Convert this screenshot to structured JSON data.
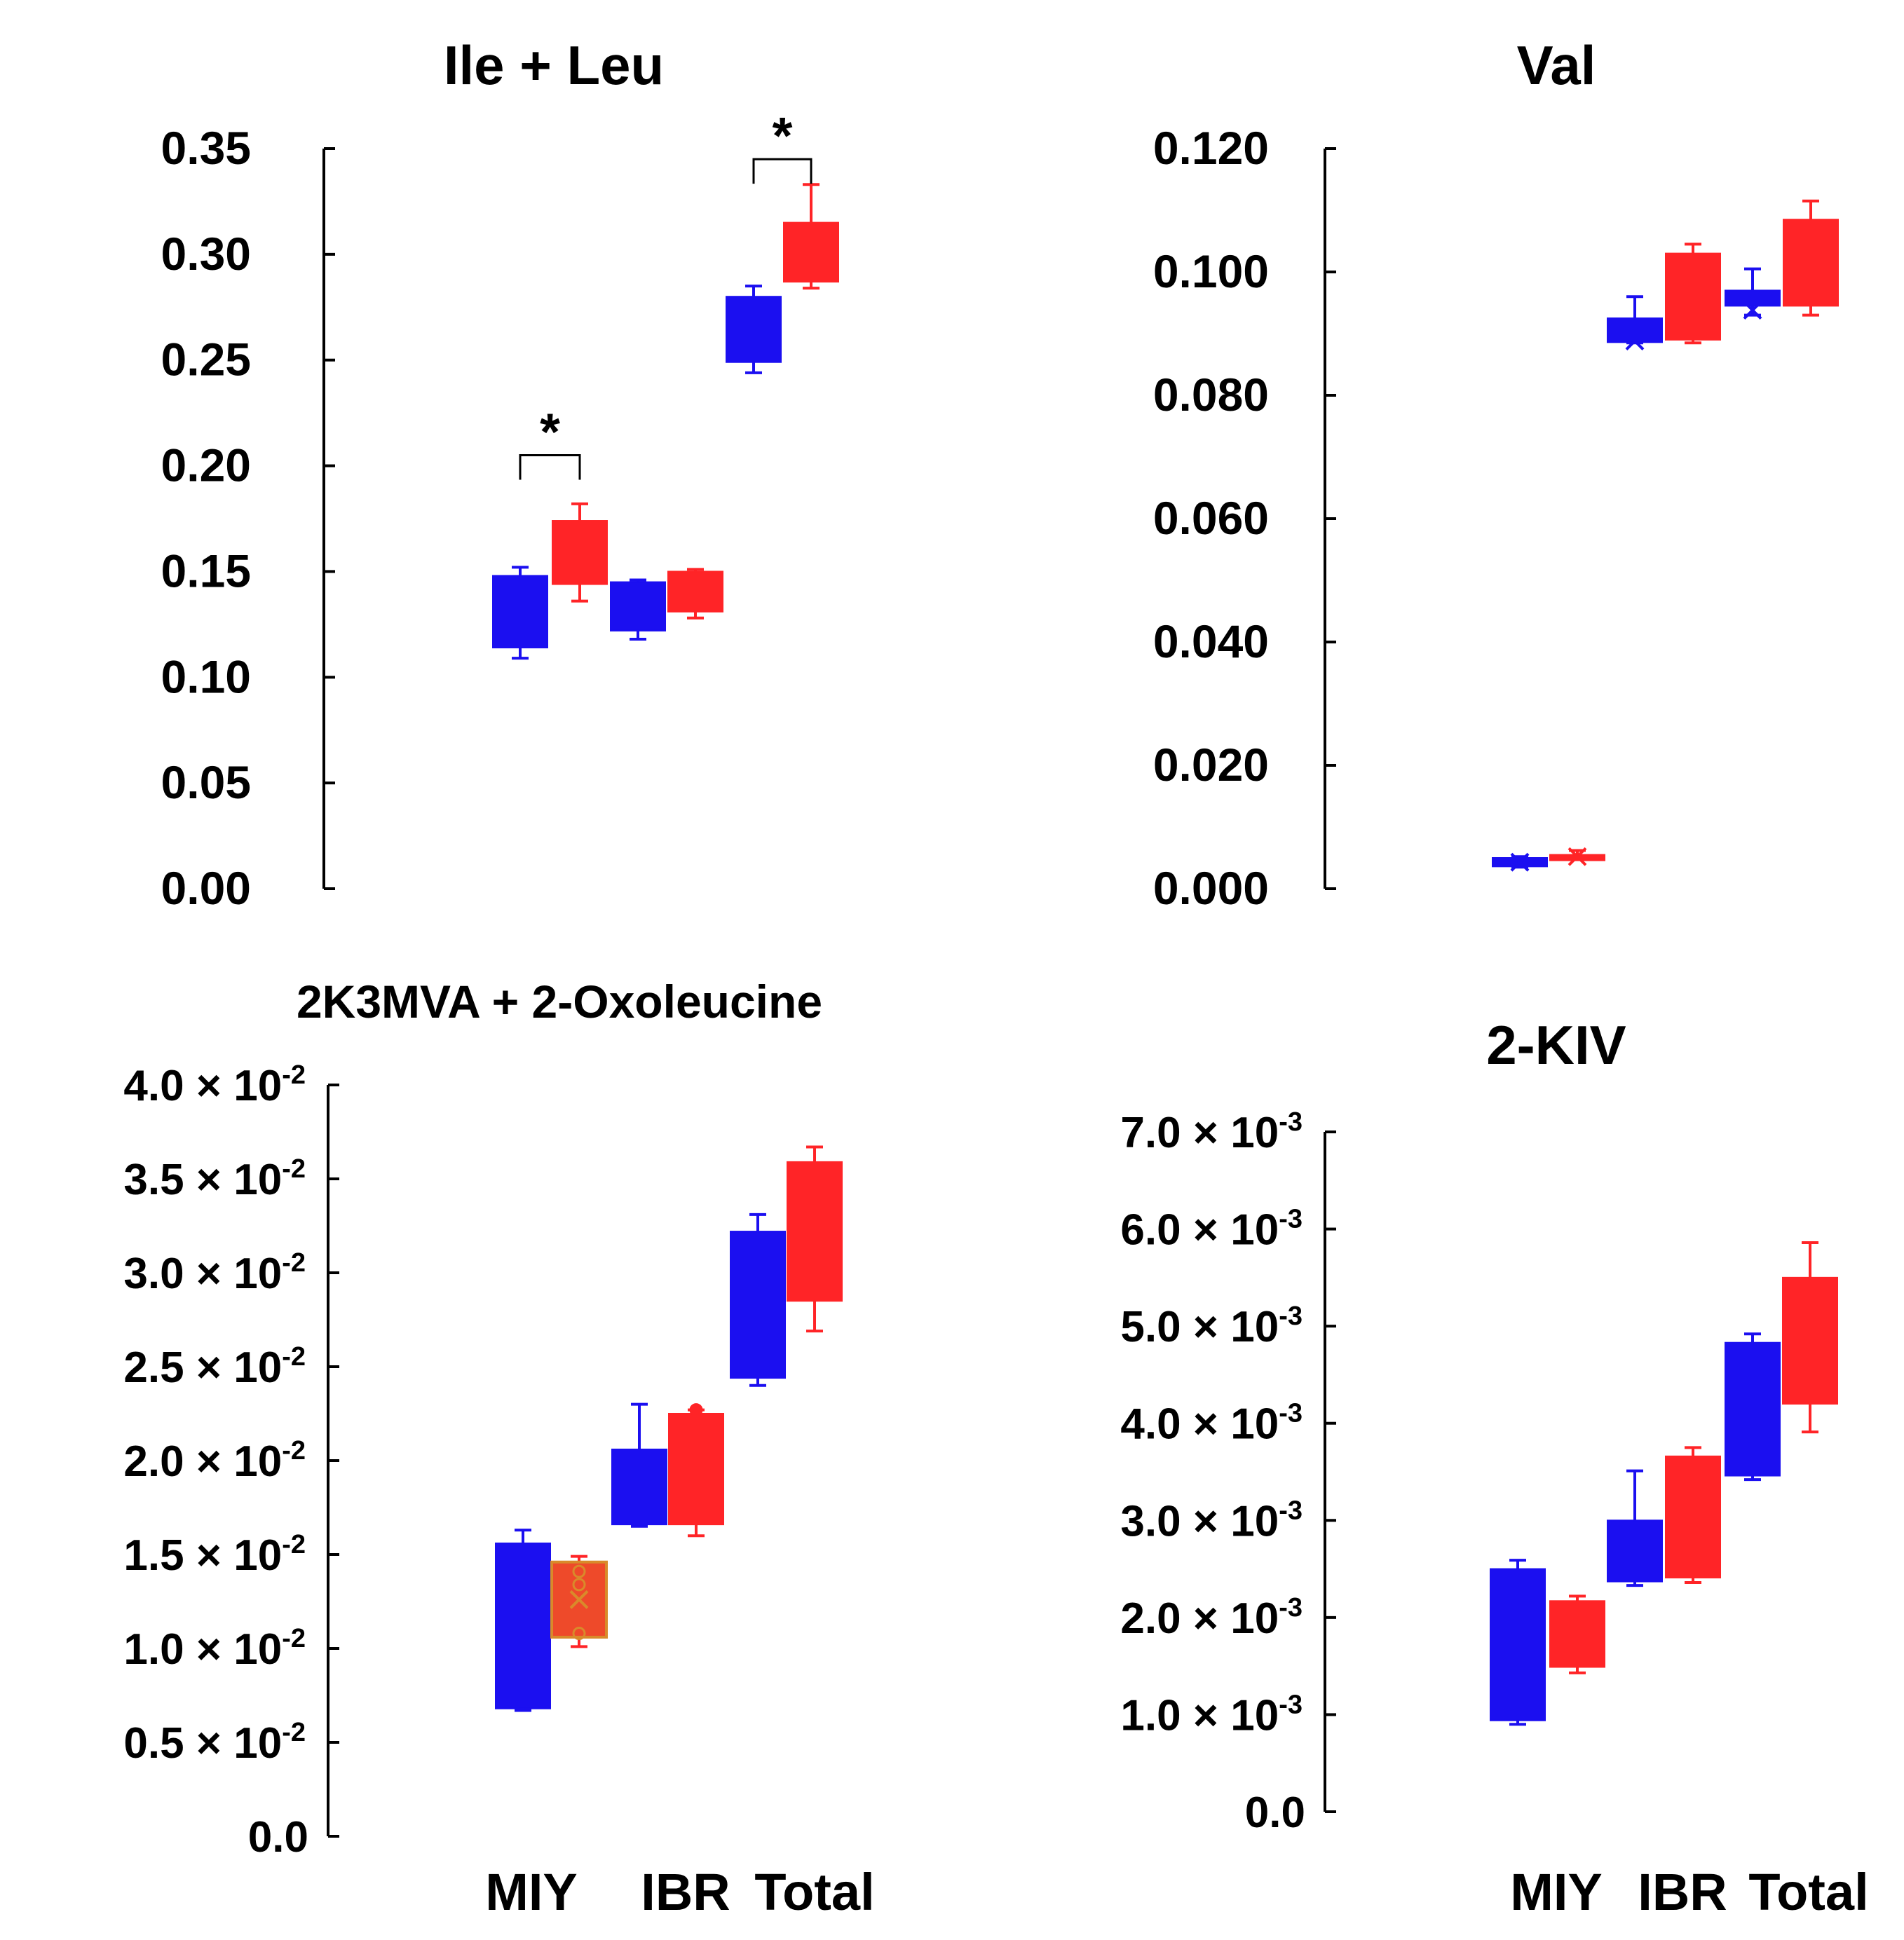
{
  "colors": {
    "group_a": "#1b0ff0",
    "group_b": "#ff2427",
    "axis": "#000000",
    "outlier_box": "#ee4a2a",
    "outlier_edge": "#d98a2a"
  },
  "chart_data": [
    {
      "id": "ile-leu",
      "type": "box",
      "title": "Ile + Leu",
      "ylim": [
        0,
        0.35
      ],
      "ticks": [
        {
          "value": 0.0,
          "label": "0.00"
        },
        {
          "value": 0.05,
          "label": "0.05"
        },
        {
          "value": 0.1,
          "label": "0.10"
        },
        {
          "value": 0.15,
          "label": "0.15"
        },
        {
          "value": 0.2,
          "label": "0.20"
        },
        {
          "value": 0.25,
          "label": "0.25"
        },
        {
          "value": 0.3,
          "label": "0.30"
        },
        {
          "value": 0.35,
          "label": "0.35"
        }
      ],
      "categories": [],
      "boxes": [
        {
          "category": "MIY",
          "group": "a",
          "min": 0.109,
          "q1": 0.114,
          "q3": 0.148,
          "max": 0.152
        },
        {
          "category": "MIY",
          "group": "b",
          "min": 0.136,
          "q1": 0.144,
          "q3": 0.174,
          "max": 0.182
        },
        {
          "category": "IBR",
          "group": "a",
          "min": 0.118,
          "q1": 0.122,
          "q3": 0.145,
          "max": 0.146
        },
        {
          "category": "IBR",
          "group": "b",
          "min": 0.128,
          "q1": 0.131,
          "q3": 0.15,
          "max": 0.151
        },
        {
          "category": "Total",
          "group": "a",
          "min": 0.244,
          "q1": 0.249,
          "q3": 0.28,
          "max": 0.285
        },
        {
          "category": "Total",
          "group": "b",
          "min": 0.284,
          "q1": 0.287,
          "q3": 0.315,
          "max": 0.333
        }
      ],
      "significance": [
        {
          "category": "MIY",
          "label": "*",
          "y": 0.205
        },
        {
          "category": "Total",
          "label": "*",
          "y": 0.345
        }
      ]
    },
    {
      "id": "val",
      "type": "box",
      "title": "Val",
      "ylim": [
        0,
        0.12
      ],
      "ticks": [
        {
          "value": 0.0,
          "label": "0.000"
        },
        {
          "value": 0.02,
          "label": "0.020"
        },
        {
          "value": 0.04,
          "label": "0.040"
        },
        {
          "value": 0.06,
          "label": "0.060"
        },
        {
          "value": 0.08,
          "label": "0.080"
        },
        {
          "value": 0.1,
          "label": "0.100"
        },
        {
          "value": 0.12,
          "label": "0.120"
        }
      ],
      "categories": [],
      "boxes": [
        {
          "category": "MIY",
          "group": "a",
          "min": 0.0035,
          "q1": 0.0036,
          "q3": 0.005,
          "max": 0.0052,
          "mean": 0.0043
        },
        {
          "category": "MIY",
          "group": "b",
          "min": 0.0048,
          "q1": 0.005,
          "q3": 0.0055,
          "max": 0.0062,
          "mean": 0.0052
        },
        {
          "category": "IBR",
          "group": "a",
          "min": 0.0885,
          "q1": 0.0886,
          "q3": 0.0925,
          "max": 0.096,
          "mean": 0.0888
        },
        {
          "category": "IBR",
          "group": "b",
          "min": 0.0885,
          "q1": 0.089,
          "q3": 0.103,
          "max": 0.1045
        },
        {
          "category": "Total",
          "group": "a",
          "min": 0.093,
          "q1": 0.0945,
          "q3": 0.097,
          "max": 0.1005,
          "mean": 0.0938
        },
        {
          "category": "Total",
          "group": "b",
          "min": 0.093,
          "q1": 0.0945,
          "q3": 0.1085,
          "max": 0.1115
        }
      ]
    },
    {
      "id": "2k3mva",
      "type": "box",
      "title": "2K3MVA + 2-Oxoleucine",
      "ylim": [
        0,
        0.04
      ],
      "ticks": [
        {
          "value": 0.0,
          "label": "0.0"
        },
        {
          "value": 0.005,
          "mantissa": "0.5",
          "exponent": "-2"
        },
        {
          "value": 0.01,
          "mantissa": "1.0",
          "exponent": "-2"
        },
        {
          "value": 0.015,
          "mantissa": "1.5",
          "exponent": "-2"
        },
        {
          "value": 0.02,
          "mantissa": "2.0",
          "exponent": "-2"
        },
        {
          "value": 0.025,
          "mantissa": "2.5",
          "exponent": "-2"
        },
        {
          "value": 0.03,
          "mantissa": "3.0",
          "exponent": "-2"
        },
        {
          "value": 0.035,
          "mantissa": "3.5",
          "exponent": "-2"
        },
        {
          "value": 0.04,
          "mantissa": "4.0",
          "exponent": "-2"
        }
      ],
      "categories": [
        "MIY",
        "IBR",
        "Total"
      ],
      "boxes": [
        {
          "category": "MIY",
          "group": "a",
          "min": 0.0067,
          "q1": 0.0068,
          "q3": 0.0156,
          "max": 0.0163
        },
        {
          "category": "MIY",
          "group": "b",
          "min": 0.0101,
          "q1": 0.0106,
          "q3": 0.0146,
          "max": 0.0149,
          "mean": 0.0126,
          "style": "outlined",
          "points": [
            0.0141,
            0.0134,
            0.0108
          ]
        },
        {
          "category": "IBR",
          "group": "a",
          "min": 0.0165,
          "q1": 0.0166,
          "q3": 0.0206,
          "max": 0.023
        },
        {
          "category": "IBR",
          "group": "b",
          "min": 0.016,
          "q1": 0.0166,
          "q3": 0.0225,
          "max": 0.0227,
          "points": [
            0.0227
          ]
        },
        {
          "category": "Total",
          "group": "a",
          "min": 0.024,
          "q1": 0.0244,
          "q3": 0.0322,
          "max": 0.0331
        },
        {
          "category": "Total",
          "group": "b",
          "min": 0.0269,
          "q1": 0.0285,
          "q3": 0.0359,
          "max": 0.0367
        }
      ]
    },
    {
      "id": "2kiv",
      "type": "box",
      "title": "2-KIV",
      "ylim": [
        0,
        0.007
      ],
      "ticks": [
        {
          "value": 0.0,
          "label": "0.0"
        },
        {
          "value": 0.001,
          "mantissa": "1.0",
          "exponent": "-3"
        },
        {
          "value": 0.002,
          "mantissa": "2.0",
          "exponent": "-3"
        },
        {
          "value": 0.003,
          "mantissa": "3.0",
          "exponent": "-3"
        },
        {
          "value": 0.004,
          "mantissa": "4.0",
          "exponent": "-3"
        },
        {
          "value": 0.005,
          "mantissa": "5.0",
          "exponent": "-3"
        },
        {
          "value": 0.006,
          "mantissa": "6.0",
          "exponent": "-3"
        },
        {
          "value": 0.007,
          "mantissa": "7.0",
          "exponent": "-3"
        }
      ],
      "categories": [
        "MIY",
        "IBR",
        "Total"
      ],
      "boxes": [
        {
          "category": "MIY",
          "group": "a",
          "min": 0.0009,
          "q1": 0.00094,
          "q3": 0.0025,
          "max": 0.00259
        },
        {
          "category": "MIY",
          "group": "b",
          "min": 0.00143,
          "q1": 0.00149,
          "q3": 0.00217,
          "max": 0.00222
        },
        {
          "category": "IBR",
          "group": "a",
          "min": 0.00233,
          "q1": 0.00237,
          "q3": 0.003,
          "max": 0.00351
        },
        {
          "category": "IBR",
          "group": "b",
          "min": 0.00236,
          "q1": 0.00241,
          "q3": 0.00366,
          "max": 0.00375
        },
        {
          "category": "Total",
          "group": "a",
          "min": 0.00342,
          "q1": 0.00346,
          "q3": 0.00483,
          "max": 0.00492
        },
        {
          "category": "Total",
          "group": "b",
          "min": 0.00391,
          "q1": 0.0042,
          "q3": 0.0055,
          "max": 0.00586
        }
      ]
    }
  ]
}
